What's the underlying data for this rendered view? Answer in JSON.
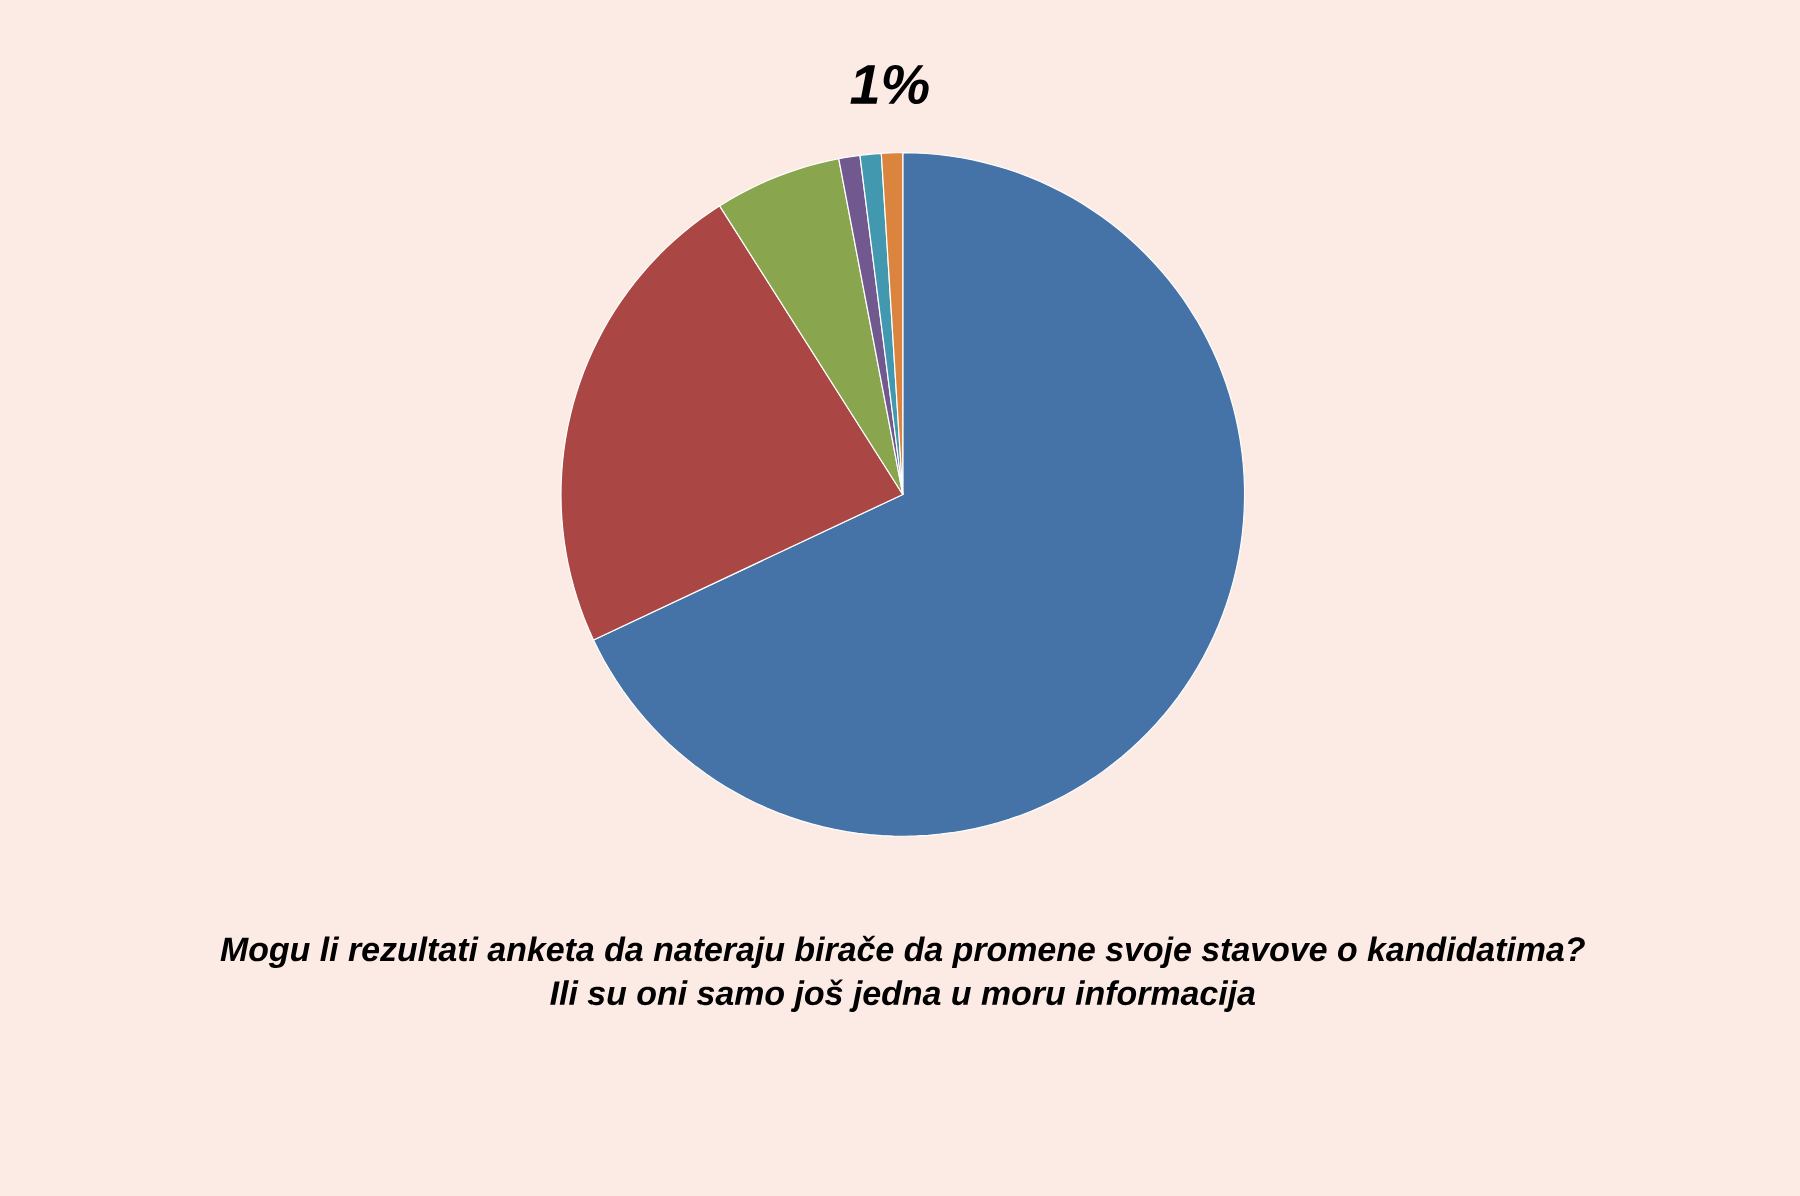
{
  "chart_data": {
    "type": "pie",
    "title": "Mogu li rezultati anketa da nateraju birače da promene svoje stavove o kandidatima?",
    "subtitle": "Ili su oni samo još jedna u moru informacija",
    "categories": [
      null,
      null,
      null,
      null,
      null,
      null
    ],
    "values": [
      68,
      23,
      6,
      1,
      1,
      1
    ],
    "colors": [
      "#4572a7",
      "#aa4643",
      "#89a54e",
      "#71588f",
      "#4198af",
      "#db843d"
    ],
    "value_labels": [
      null,
      null,
      null,
      null,
      null,
      "1%"
    ]
  }
}
